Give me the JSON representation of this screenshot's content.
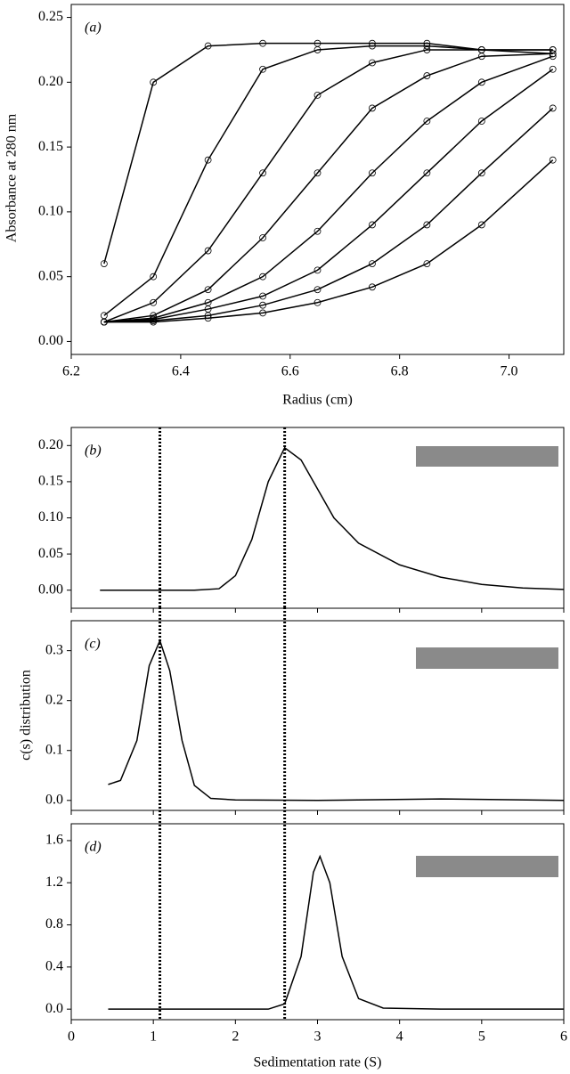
{
  "chart_data": [
    {
      "type": "line",
      "panel_label": "(a)",
      "xlabel": "Radius (cm)",
      "ylabel": "Absorbance at 280 nm",
      "color": "#000000",
      "markers": true,
      "xlim": [
        6.2,
        7.1
      ],
      "ylim": [
        -0.01,
        0.26
      ],
      "xticks": [
        6.2,
        6.4,
        6.6,
        6.8,
        {
          "value": 7,
          "label": "7.0"
        }
      ],
      "yticks": [
        {
          "value": 0,
          "label": "0.00"
        },
        0.05,
        {
          "value": 0.1,
          "label": "0.10"
        },
        0.15,
        {
          "value": 0.2,
          "label": "0.20"
        },
        0.25
      ],
      "show_xtick_labels": true,
      "x": [
        6.26,
        6.35,
        6.45,
        6.55,
        6.65,
        6.75,
        6.85,
        6.95,
        7.08
      ],
      "series": [
        {
          "values": [
            0.06,
            0.2,
            0.228,
            0.23,
            0.23,
            0.23,
            0.23,
            0.225,
            0.225
          ]
        },
        {
          "values": [
            0.02,
            0.05,
            0.14,
            0.21,
            0.225,
            0.228,
            0.228,
            0.225,
            0.225
          ]
        },
        {
          "values": [
            0.015,
            0.03,
            0.07,
            0.13,
            0.19,
            0.215,
            0.225,
            0.225,
            0.222
          ]
        },
        {
          "values": [
            0.015,
            0.02,
            0.04,
            0.08,
            0.13,
            0.18,
            0.205,
            0.22,
            0.222
          ]
        },
        {
          "values": [
            0.015,
            0.018,
            0.03,
            0.05,
            0.085,
            0.13,
            0.17,
            0.2,
            0.22
          ]
        },
        {
          "values": [
            0.015,
            0.017,
            0.025,
            0.035,
            0.055,
            0.09,
            0.13,
            0.17,
            0.21
          ]
        },
        {
          "values": [
            0.015,
            0.016,
            0.02,
            0.028,
            0.04,
            0.06,
            0.09,
            0.13,
            0.18
          ]
        },
        {
          "values": [
            0.015,
            0.015,
            0.018,
            0.022,
            0.03,
            0.042,
            0.06,
            0.09,
            0.14
          ]
        }
      ]
    },
    {
      "type": "line",
      "panel_label": "(b)",
      "color": "#000000",
      "markers": false,
      "xlim": [
        0,
        6
      ],
      "ylim": [
        -0.025,
        0.225
      ],
      "xticks": [
        0,
        1,
        2,
        3,
        4,
        5,
        6
      ],
      "show_xtick_labels": false,
      "yticks": [
        {
          "value": 0,
          "label": "0.00"
        },
        0.05,
        {
          "value": 0.1,
          "label": "0.10"
        },
        0.15,
        {
          "value": 0.2,
          "label": "0.20"
        }
      ],
      "vlines": [
        1.08,
        2.6
      ],
      "x": [
        0.35,
        1.5,
        1.8,
        2.0,
        2.2,
        2.4,
        2.6,
        2.8,
        3.0,
        3.2,
        3.5,
        4.0,
        4.5,
        5.0,
        5.5,
        6.0
      ],
      "series": [
        {
          "values": [
            0,
            0,
            0.002,
            0.02,
            0.07,
            0.15,
            0.197,
            0.18,
            0.14,
            0.1,
            0.065,
            0.035,
            0.018,
            0.008,
            0.003,
            0.001
          ]
        }
      ]
    },
    {
      "type": "line",
      "panel_label": "(c)",
      "ylabel": "c(s) distribution",
      "color": "#000000",
      "markers": false,
      "xlim": [
        0,
        6
      ],
      "ylim": [
        -0.02,
        0.36
      ],
      "xticks": [
        0,
        1,
        2,
        3,
        4,
        5,
        6
      ],
      "show_xtick_labels": false,
      "yticks": [
        {
          "value": 0,
          "label": "0.0"
        },
        0.1,
        0.2,
        0.3
      ],
      "vlines": [
        1.08,
        2.6
      ],
      "x": [
        0.45,
        0.6,
        0.8,
        0.95,
        1.08,
        1.2,
        1.35,
        1.5,
        1.7,
        2.0,
        3.0,
        4.5,
        6.0
      ],
      "series": [
        {
          "values": [
            0.032,
            0.04,
            0.12,
            0.27,
            0.32,
            0.26,
            0.12,
            0.03,
            0.004,
            0.001,
            0,
            0.003,
            0
          ]
        }
      ]
    },
    {
      "type": "line",
      "panel_label": "(d)",
      "xlabel": "Sedimentation rate (S)",
      "color": "#000000",
      "markers": false,
      "xlim": [
        0,
        6
      ],
      "ylim": [
        -0.1,
        1.76
      ],
      "xticks": [
        0,
        1,
        2,
        3,
        4,
        5,
        6
      ],
      "show_xtick_labels": true,
      "yticks": [
        {
          "value": 0,
          "label": "0.0"
        },
        0.4,
        0.8,
        1.2,
        1.6
      ],
      "vlines": [
        1.08,
        2.6
      ],
      "x": [
        0.45,
        2.4,
        2.6,
        2.8,
        2.95,
        3.03,
        3.15,
        3.3,
        3.5,
        3.8,
        4.5,
        6.0
      ],
      "series": [
        {
          "values": [
            0,
            0,
            0.05,
            0.5,
            1.3,
            1.45,
            1.2,
            0.5,
            0.1,
            0.01,
            0,
            0
          ]
        }
      ]
    }
  ]
}
